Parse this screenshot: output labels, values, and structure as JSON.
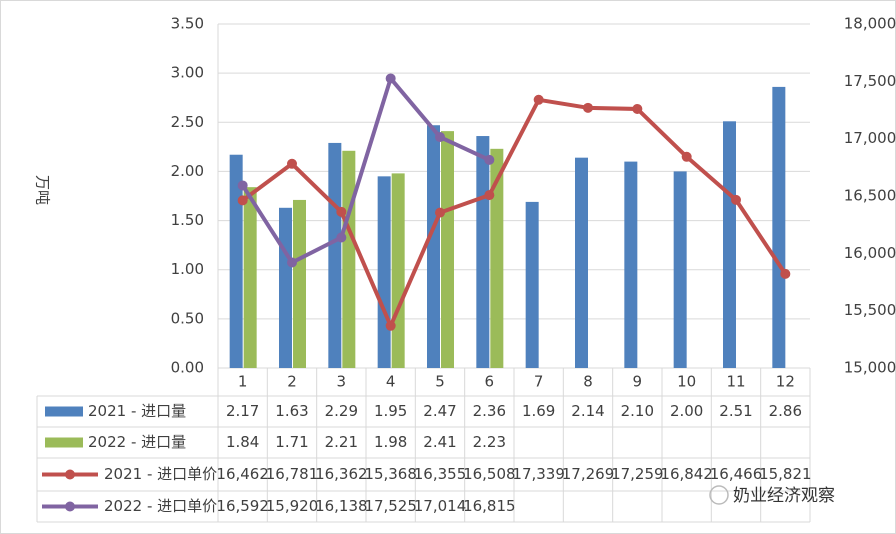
{
  "chart_data": {
    "type": "bar-line-table",
    "y_label": "万吨",
    "watermark": "奶业经济观察",
    "categories": [
      "1",
      "2",
      "3",
      "4",
      "5",
      "6",
      "7",
      "8",
      "9",
      "10",
      "11",
      "12"
    ],
    "series": [
      {
        "name": "2021 - 进口量",
        "type": "bar",
        "color": "#4f81bd",
        "values": [
          2.17,
          1.63,
          2.29,
          1.95,
          2.47,
          2.36,
          1.69,
          2.14,
          2.1,
          2.0,
          2.51,
          2.86
        ],
        "value_labels": [
          "2.17",
          "1.63",
          "2.29",
          "1.95",
          "2.47",
          "2.36",
          "1.69",
          "2.14",
          "2.10",
          "2.00",
          "2.51",
          "2.86"
        ]
      },
      {
        "name": "2022 - 进口量",
        "type": "bar",
        "color": "#9bbb59",
        "values": [
          1.84,
          1.71,
          2.21,
          1.98,
          2.41,
          2.23,
          null,
          null,
          null,
          null,
          null,
          null
        ],
        "value_labels": [
          "1.84",
          "1.71",
          "2.21",
          "1.98",
          "2.41",
          "2.23",
          null,
          null,
          null,
          null,
          null,
          null
        ]
      },
      {
        "name": "2021 - 进口单价",
        "type": "line",
        "axis": "y2",
        "color": "#c0504d",
        "values": [
          16462,
          16781,
          16362,
          15368,
          16355,
          16508,
          17339,
          17269,
          17259,
          16842,
          16466,
          15821
        ],
        "value_labels": [
          "16,462",
          "16,781",
          "16,362",
          "15,368",
          "16,355",
          "16,508",
          "17,339",
          "17,269",
          "17,259",
          "16,842",
          "16,466",
          "15,821"
        ]
      },
      {
        "name": "2022 - 进口单价",
        "type": "line",
        "axis": "y2",
        "color": "#8064a2",
        "values": [
          16592,
          15920,
          16138,
          17525,
          17014,
          16815,
          null,
          null,
          null,
          null,
          null,
          null
        ],
        "value_labels": [
          "16,592",
          "15,920",
          "16,138",
          "17,525",
          "17,014",
          "16,815",
          null,
          null,
          null,
          null,
          null,
          null
        ]
      }
    ],
    "ylim": [
      0,
      3.5
    ],
    "yticks": [
      {
        "value": 0,
        "label": "0.00"
      },
      {
        "value": 0.5,
        "label": "0.50"
      },
      {
        "value": 1,
        "label": "1.00"
      },
      {
        "value": 1.5,
        "label": "1.50"
      },
      {
        "value": 2,
        "label": "2.00"
      },
      {
        "value": 2.5,
        "label": "2.50"
      },
      {
        "value": 3,
        "label": "3.00"
      },
      {
        "value": 3.5,
        "label": "3.50"
      }
    ],
    "y2lim": [
      15000,
      18000
    ],
    "y2ticks": [
      {
        "value": 15000,
        "label": "15,000"
      },
      {
        "value": 15500,
        "label": "15,500"
      },
      {
        "value": 16000,
        "label": "16,000"
      },
      {
        "value": 16500,
        "label": "16,500"
      },
      {
        "value": 17000,
        "label": "17,000"
      },
      {
        "value": 17500,
        "label": "17,500"
      },
      {
        "value": 18000,
        "label": "18,000"
      }
    ],
    "grid": true
  }
}
